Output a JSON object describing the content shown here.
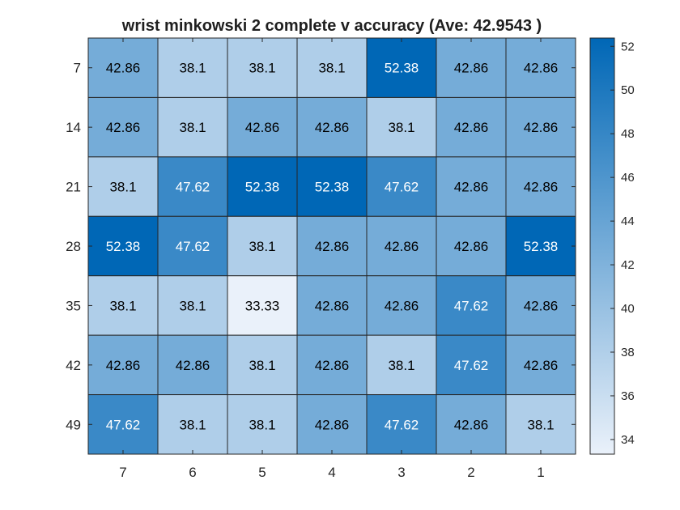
{
  "chart_data": {
    "type": "heatmap",
    "title": "wrist minkowski 2 complete v accuracy (Ave:  42.9543 )",
    "x_categories": [
      "7",
      "6",
      "5",
      "4",
      "3",
      "2",
      "1"
    ],
    "y_categories": [
      "7",
      "14",
      "21",
      "28",
      "35",
      "42",
      "49"
    ],
    "values": [
      [
        42.86,
        38.1,
        38.1,
        38.1,
        52.38,
        42.86,
        42.86
      ],
      [
        42.86,
        38.1,
        42.86,
        42.86,
        38.1,
        42.86,
        42.86
      ],
      [
        38.1,
        47.62,
        52.38,
        52.38,
        47.62,
        42.86,
        42.86
      ],
      [
        52.38,
        47.62,
        38.1,
        42.86,
        42.86,
        42.86,
        52.38
      ],
      [
        38.1,
        38.1,
        33.33,
        42.86,
        42.86,
        47.62,
        42.86
      ],
      [
        42.86,
        42.86,
        38.1,
        42.86,
        38.1,
        47.62,
        42.86
      ],
      [
        47.62,
        38.1,
        38.1,
        42.86,
        47.62,
        42.86,
        38.1
      ]
    ],
    "value_labels": [
      [
        "42.86",
        "38.1",
        "38.1",
        "38.1",
        "52.38",
        "42.86",
        "42.86"
      ],
      [
        "42.86",
        "38.1",
        "42.86",
        "42.86",
        "38.1",
        "42.86",
        "42.86"
      ],
      [
        "38.1",
        "47.62",
        "52.38",
        "52.38",
        "47.62",
        "42.86",
        "42.86"
      ],
      [
        "52.38",
        "47.62",
        "38.1",
        "42.86",
        "42.86",
        "42.86",
        "52.38"
      ],
      [
        "38.1",
        "38.1",
        "33.33",
        "42.86",
        "42.86",
        "47.62",
        "42.86"
      ],
      [
        "42.86",
        "42.86",
        "38.1",
        "42.86",
        "38.1",
        "47.62",
        "42.86"
      ],
      [
        "47.62",
        "38.1",
        "38.1",
        "42.86",
        "47.62",
        "42.86",
        "38.1"
      ]
    ],
    "colorbar": {
      "range": [
        33.33,
        52.38
      ],
      "ticks": [
        34,
        36,
        38,
        40,
        42,
        44,
        46,
        48,
        50,
        52
      ],
      "tick_labels": [
        "34",
        "36",
        "38",
        "40",
        "42",
        "44",
        "46",
        "48",
        "50",
        "52"
      ],
      "color_low": "#eaf1fa",
      "color_high": "#0067b6"
    },
    "text_color_dark": "#000000",
    "text_color_light": "#ffffff",
    "light_text_threshold": 45,
    "grid": false
  }
}
